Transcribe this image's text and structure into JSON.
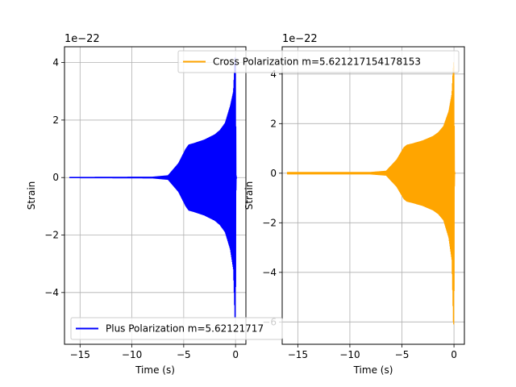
{
  "figure": {
    "background": "#ffffff"
  },
  "chart_data": [
    {
      "type": "line",
      "title": "",
      "xlabel": "Time (s)",
      "ylabel": "Strain",
      "scale_label": "1e−22",
      "xlim": [
        -16.5,
        1.0
      ],
      "ylim": [
        -5.8,
        4.55
      ],
      "xticks": [
        -15,
        -10,
        -5,
        0
      ],
      "xtick_labels": [
        "−15",
        "−10",
        "−5",
        "0"
      ],
      "yticks": [
        -4,
        -2,
        0,
        2,
        4
      ],
      "ytick_labels": [
        "−4",
        "−2",
        "0",
        "2",
        "4"
      ],
      "grid": true,
      "legend_position": "lower-left",
      "series": [
        {
          "name": "Plus Polarization m=5.62121717",
          "color": "#0000ff",
          "t_start": -16.0,
          "t_end": 0.1,
          "envelope_t": [
            -16.0,
            -8.0,
            -6.5,
            -5.5,
            -4.8,
            -4.5,
            -4.0,
            -3.0,
            -2.0,
            -1.5,
            -1.0,
            -0.5,
            -0.2,
            -0.05,
            0.0,
            0.05,
            0.1
          ],
          "envelope_upper": [
            0.02,
            0.03,
            0.08,
            0.5,
            1.0,
            1.15,
            1.2,
            1.32,
            1.5,
            1.65,
            1.9,
            2.5,
            3.0,
            4.2,
            4.0,
            0.1,
            0.0
          ],
          "envelope_lower": [
            -0.02,
            -0.03,
            -0.08,
            -0.5,
            -1.0,
            -1.15,
            -1.2,
            -1.32,
            -1.5,
            -1.65,
            -1.9,
            -2.5,
            -3.2,
            -5.0,
            -4.8,
            -0.1,
            0.0
          ]
        }
      ]
    },
    {
      "type": "line",
      "title": "",
      "xlabel": "Time (s)",
      "ylabel": "Strain",
      "scale_label": "1e−22",
      "xlim": [
        -16.5,
        1.0
      ],
      "ylim": [
        -6.9,
        5.1
      ],
      "xticks": [
        -15,
        -10,
        -5,
        0
      ],
      "xtick_labels": [
        "−15",
        "−10",
        "−5",
        "0"
      ],
      "yticks": [
        -6,
        -4,
        -2,
        0,
        2,
        4
      ],
      "ytick_labels": [
        "−6",
        "−4",
        "−2",
        "0",
        "2",
        "4"
      ],
      "grid": true,
      "legend_position": "top-right",
      "series": [
        {
          "name": "Cross Polarization m=5.621217154178153",
          "color": "#ffa500",
          "t_start": -16.0,
          "t_end": 0.1,
          "envelope_t": [
            -16.0,
            -8.0,
            -6.5,
            -5.5,
            -4.8,
            -4.5,
            -4.0,
            -3.0,
            -2.0,
            -1.5,
            -1.0,
            -0.5,
            -0.2,
            -0.05,
            0.0,
            0.05,
            0.1
          ],
          "envelope_upper": [
            0.05,
            0.05,
            0.1,
            0.55,
            1.05,
            1.15,
            1.2,
            1.32,
            1.5,
            1.65,
            1.9,
            2.5,
            3.2,
            4.5,
            4.3,
            0.1,
            0.0
          ],
          "envelope_lower": [
            -0.05,
            -0.05,
            -0.1,
            -0.55,
            -1.05,
            -1.15,
            -1.2,
            -1.32,
            -1.5,
            -1.65,
            -1.9,
            -2.6,
            -3.5,
            -6.2,
            -6.0,
            -0.1,
            0.0
          ]
        }
      ]
    }
  ]
}
